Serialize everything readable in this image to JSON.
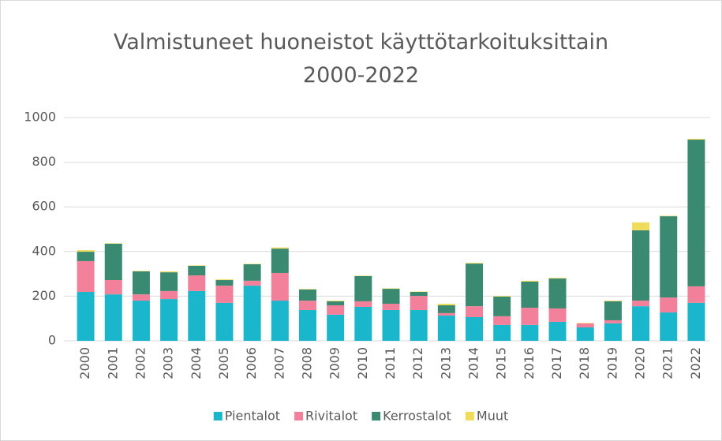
{
  "chart_data": {
    "type": "stacked_bar",
    "title": "Valmistuneet huoneistot käyttötarkoituksittain 2000-2022",
    "categories": [
      "2000",
      "2001",
      "2002",
      "2003",
      "2004",
      "2005",
      "2006",
      "2007",
      "2008",
      "2009",
      "2010",
      "2011",
      "2012",
      "2013",
      "2014",
      "2015",
      "2016",
      "2017",
      "2018",
      "2019",
      "2020",
      "2021",
      "2022"
    ],
    "series": [
      {
        "name": "Pientalot",
        "color": "#1ab6cc",
        "values": [
          219,
          208,
          180,
          187,
          223,
          170,
          247,
          180,
          138,
          117,
          152,
          138,
          138,
          113,
          106,
          71,
          71,
          85,
          60,
          78,
          155,
          127,
          170
        ]
      },
      {
        "name": "Rivitalot",
        "color": "#f2809a",
        "values": [
          138,
          64,
          28,
          36,
          70,
          77,
          22,
          124,
          42,
          42,
          25,
          28,
          63,
          11,
          49,
          39,
          77,
          60,
          18,
          14,
          25,
          67,
          74
        ]
      },
      {
        "name": "Kerrostalot",
        "color": "#3a8a72",
        "values": [
          42,
          163,
          103,
          84,
          43,
          25,
          74,
          109,
          50,
          18,
          113,
          67,
          18,
          35,
          191,
          88,
          117,
          134,
          0,
          85,
          315,
          364,
          657
        ]
      },
      {
        "name": "Muut",
        "color": "#f0dc5a",
        "values": [
          7,
          2,
          2,
          4,
          2,
          3,
          2,
          5,
          2,
          3,
          2,
          2,
          2,
          7,
          3,
          3,
          4,
          3,
          2,
          3,
          35,
          2,
          4
        ]
      }
    ],
    "ylim": [
      0,
      1000
    ],
    "yticks": [
      0,
      200,
      400,
      600,
      800,
      1000
    ],
    "grid": true,
    "legend": "bottom"
  }
}
